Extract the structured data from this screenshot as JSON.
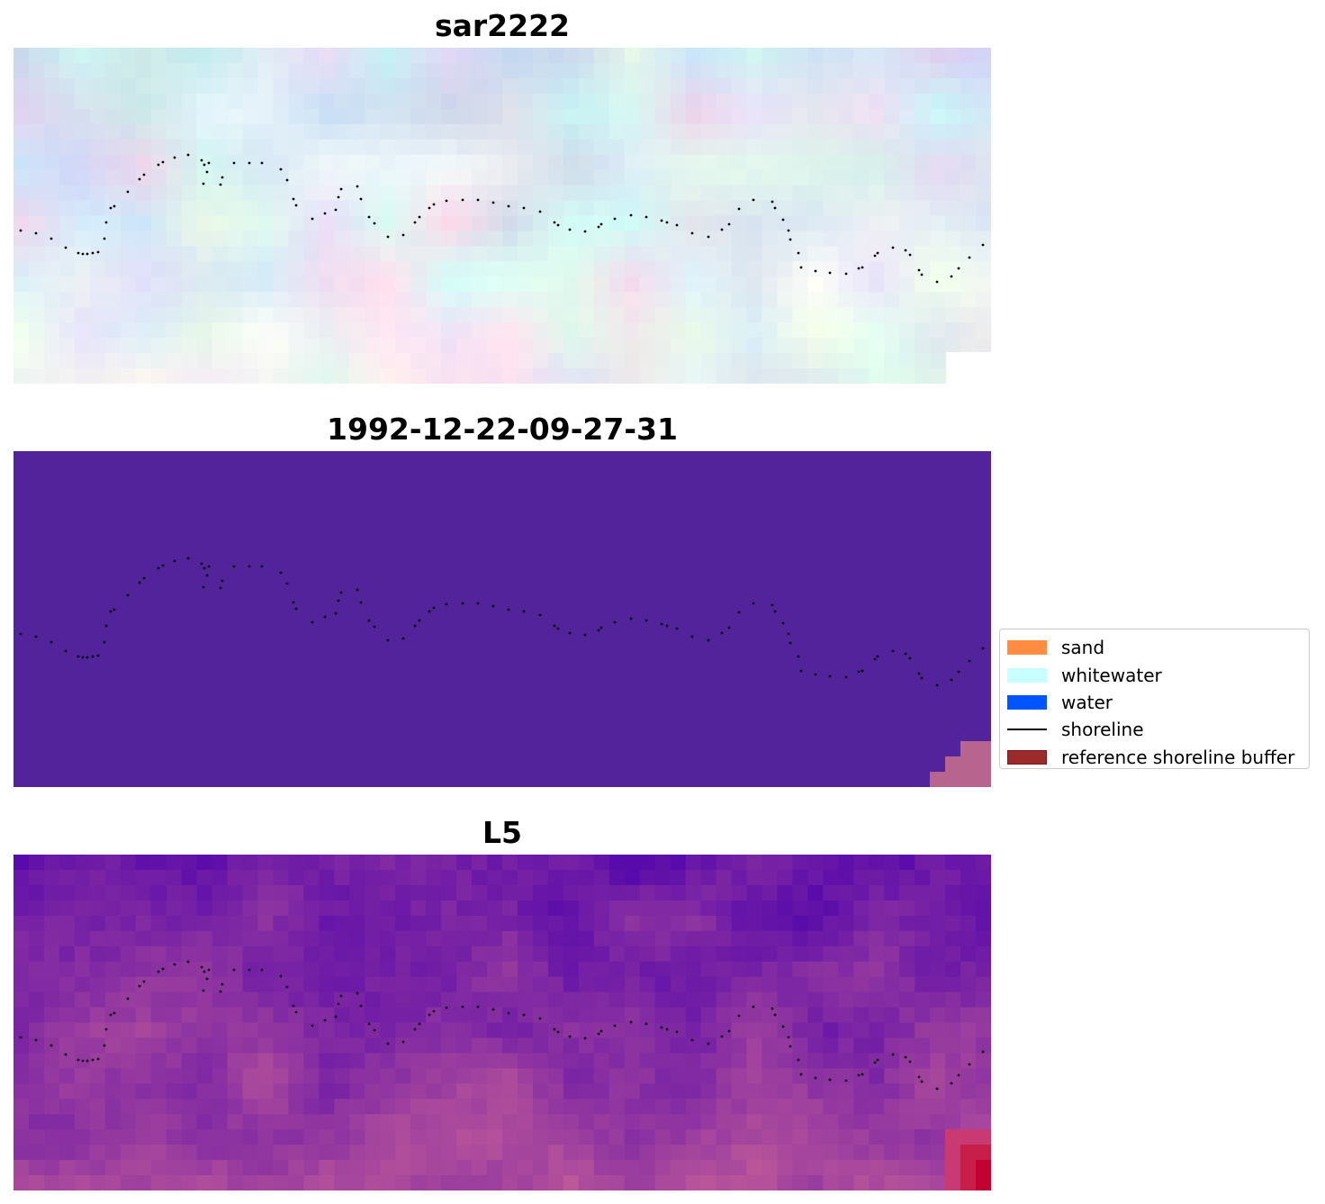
{
  "panels": [
    {
      "title": "sar2222",
      "style": "rgb"
    },
    {
      "title": "1992-12-22-09-27-31",
      "style": "class"
    },
    {
      "title": "L5",
      "style": "index"
    }
  ],
  "legend": {
    "items": [
      {
        "label": "sand",
        "color": "#ff8c40",
        "kind": "patch"
      },
      {
        "label": "whitewater",
        "color": "#c8ffff",
        "kind": "patch"
      },
      {
        "label": "water",
        "color": "#0055ff",
        "kind": "patch"
      },
      {
        "label": "shoreline",
        "color": "#000000",
        "kind": "line"
      },
      {
        "label": "reference shoreline buffer",
        "color": "#9b2a2a",
        "kind": "patch"
      }
    ]
  },
  "colors": {
    "class_background": "#52239a",
    "class_corner": "#b7648f",
    "shoreline": "#000000"
  }
}
